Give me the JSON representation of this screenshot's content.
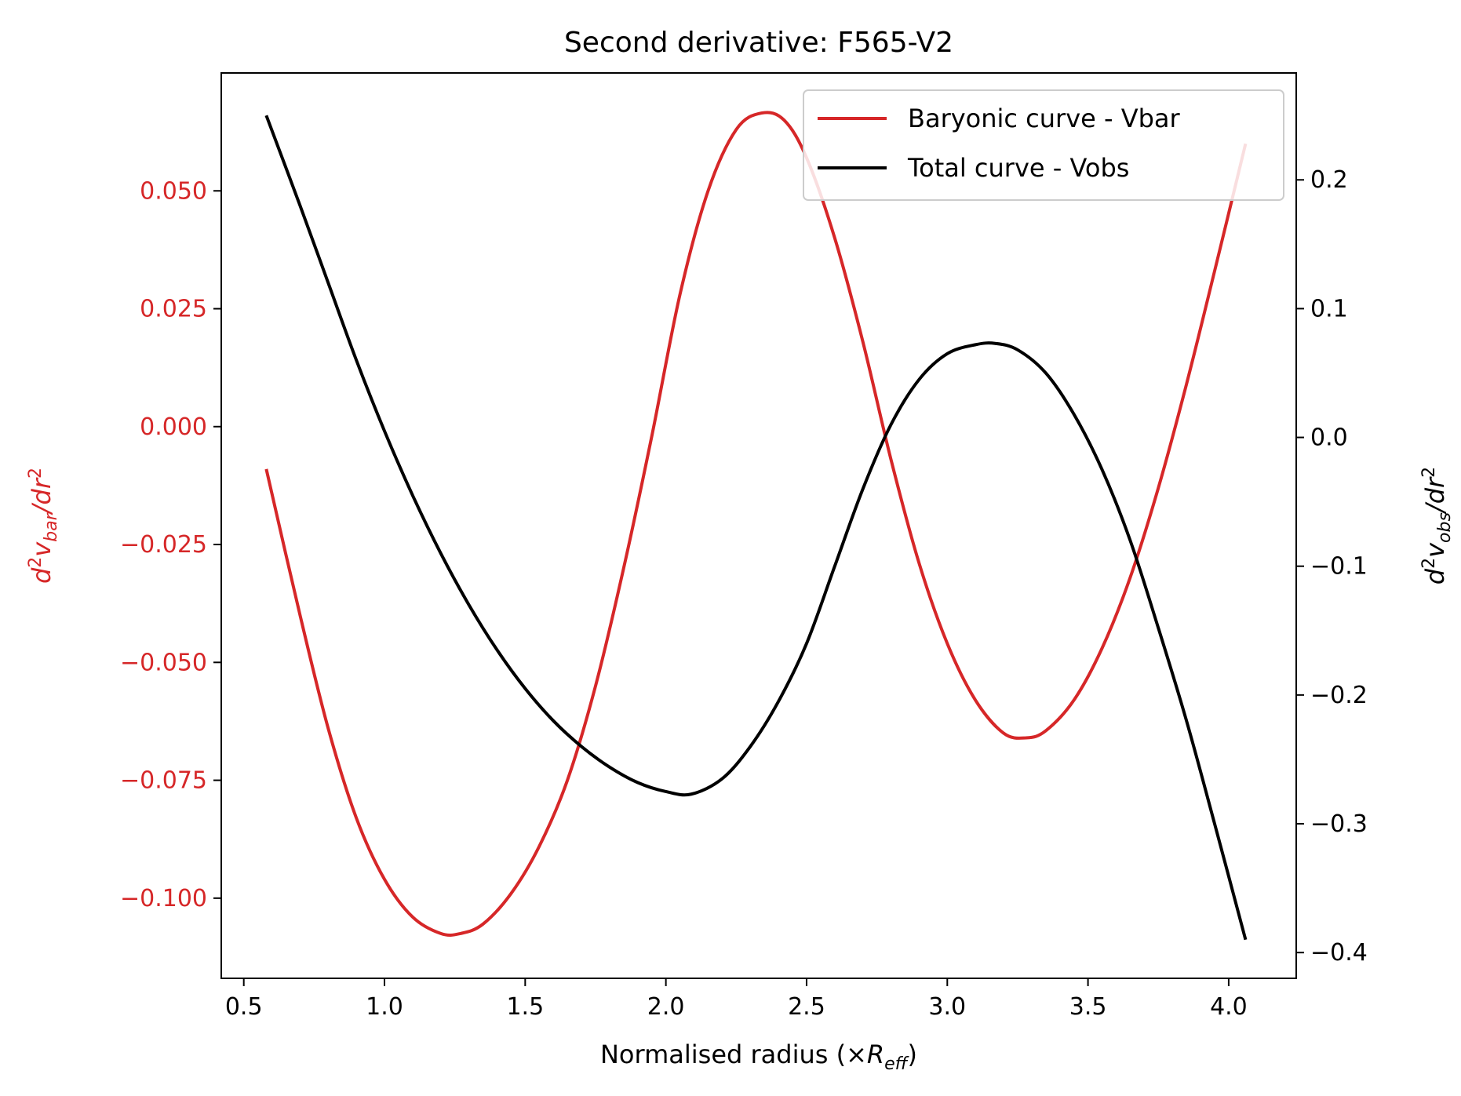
{
  "chart_data": {
    "type": "line",
    "title": "Second derivative: F565-V2",
    "xlabel": {
      "base": "Normalised radius (×",
      "var": "R",
      "sub": "eff",
      "close": ")"
    },
    "ylabel_left": {
      "pre": "d",
      "sup1": "2",
      "var": "v",
      "sub": "bar",
      "mid": "/dr",
      "sup2": "2"
    },
    "ylabel_right": {
      "pre": "d",
      "sup1": "2",
      "var": "v",
      "sub": "obs",
      "mid": "/dr",
      "sup2": "2"
    },
    "xlim": [
      0.42,
      4.24
    ],
    "ylim_left": [
      -0.117,
      0.075
    ],
    "ylim_right": [
      -0.42,
      0.283
    ],
    "xticks": [
      0.5,
      1.0,
      1.5,
      2.0,
      2.5,
      3.0,
      3.5,
      4.0
    ],
    "xtick_labels": [
      "0.5",
      "1.0",
      "1.5",
      "2.0",
      "2.5",
      "3.0",
      "3.5",
      "4.0"
    ],
    "yticks_left": [
      0.05,
      0.025,
      0.0,
      -0.025,
      -0.05,
      -0.075,
      -0.1
    ],
    "ytick_labels_left": [
      "0.050",
      "0.025",
      "0.000",
      "−0.025",
      "−0.050",
      "−0.075",
      "−0.100"
    ],
    "yticks_right": [
      0.2,
      0.1,
      0.0,
      -0.1,
      -0.2,
      -0.3,
      -0.4
    ],
    "ytick_labels_right": [
      "0.2",
      "0.1",
      "0.0",
      "−0.1",
      "−0.2",
      "−0.3",
      "−0.4"
    ],
    "legend_position": "upper right",
    "grid": false,
    "series": [
      {
        "name": "Baryonic curve - Vbar",
        "axis": "left",
        "color": "#d62728",
        "x": [
          0.58,
          0.7,
          0.8,
          0.9,
          1.0,
          1.1,
          1.2,
          1.27,
          1.35,
          1.45,
          1.55,
          1.65,
          1.75,
          1.85,
          1.95,
          2.05,
          2.15,
          2.25,
          2.34,
          2.42,
          2.5,
          2.6,
          2.7,
          2.8,
          2.9,
          3.0,
          3.1,
          3.2,
          3.28,
          3.35,
          3.45,
          3.55,
          3.65,
          3.75,
          3.85,
          3.95,
          4.06
        ],
        "y": [
          -0.009,
          -0.04,
          -0.064,
          -0.083,
          -0.096,
          -0.104,
          -0.1075,
          -0.1075,
          -0.1055,
          -0.099,
          -0.089,
          -0.075,
          -0.055,
          -0.03,
          -0.002,
          0.028,
          0.05,
          0.063,
          0.0665,
          0.065,
          0.057,
          0.04,
          0.018,
          -0.007,
          -0.029,
          -0.046,
          -0.058,
          -0.065,
          -0.066,
          -0.0645,
          -0.058,
          -0.047,
          -0.032,
          -0.013,
          0.009,
          0.033,
          0.06
        ]
      },
      {
        "name": "Total curve - Vobs",
        "axis": "right",
        "color": "#000000",
        "x": [
          0.58,
          0.7,
          0.8,
          0.9,
          1.0,
          1.1,
          1.2,
          1.3,
          1.4,
          1.5,
          1.6,
          1.7,
          1.8,
          1.9,
          2.0,
          2.09,
          2.2,
          2.3,
          2.4,
          2.5,
          2.6,
          2.7,
          2.8,
          2.9,
          3.0,
          3.1,
          3.17,
          3.25,
          3.35,
          3.45,
          3.55,
          3.65,
          3.75,
          3.85,
          3.95,
          4.06
        ],
        "y": [
          0.25,
          0.18,
          0.12,
          0.06,
          0.005,
          -0.045,
          -0.09,
          -0.13,
          -0.165,
          -0.195,
          -0.22,
          -0.24,
          -0.256,
          -0.268,
          -0.275,
          -0.277,
          -0.265,
          -0.24,
          -0.205,
          -0.16,
          -0.1,
          -0.04,
          0.01,
          0.045,
          0.065,
          0.072,
          0.073,
          0.068,
          0.05,
          0.018,
          -0.025,
          -0.08,
          -0.148,
          -0.22,
          -0.3,
          -0.39
        ]
      }
    ]
  }
}
